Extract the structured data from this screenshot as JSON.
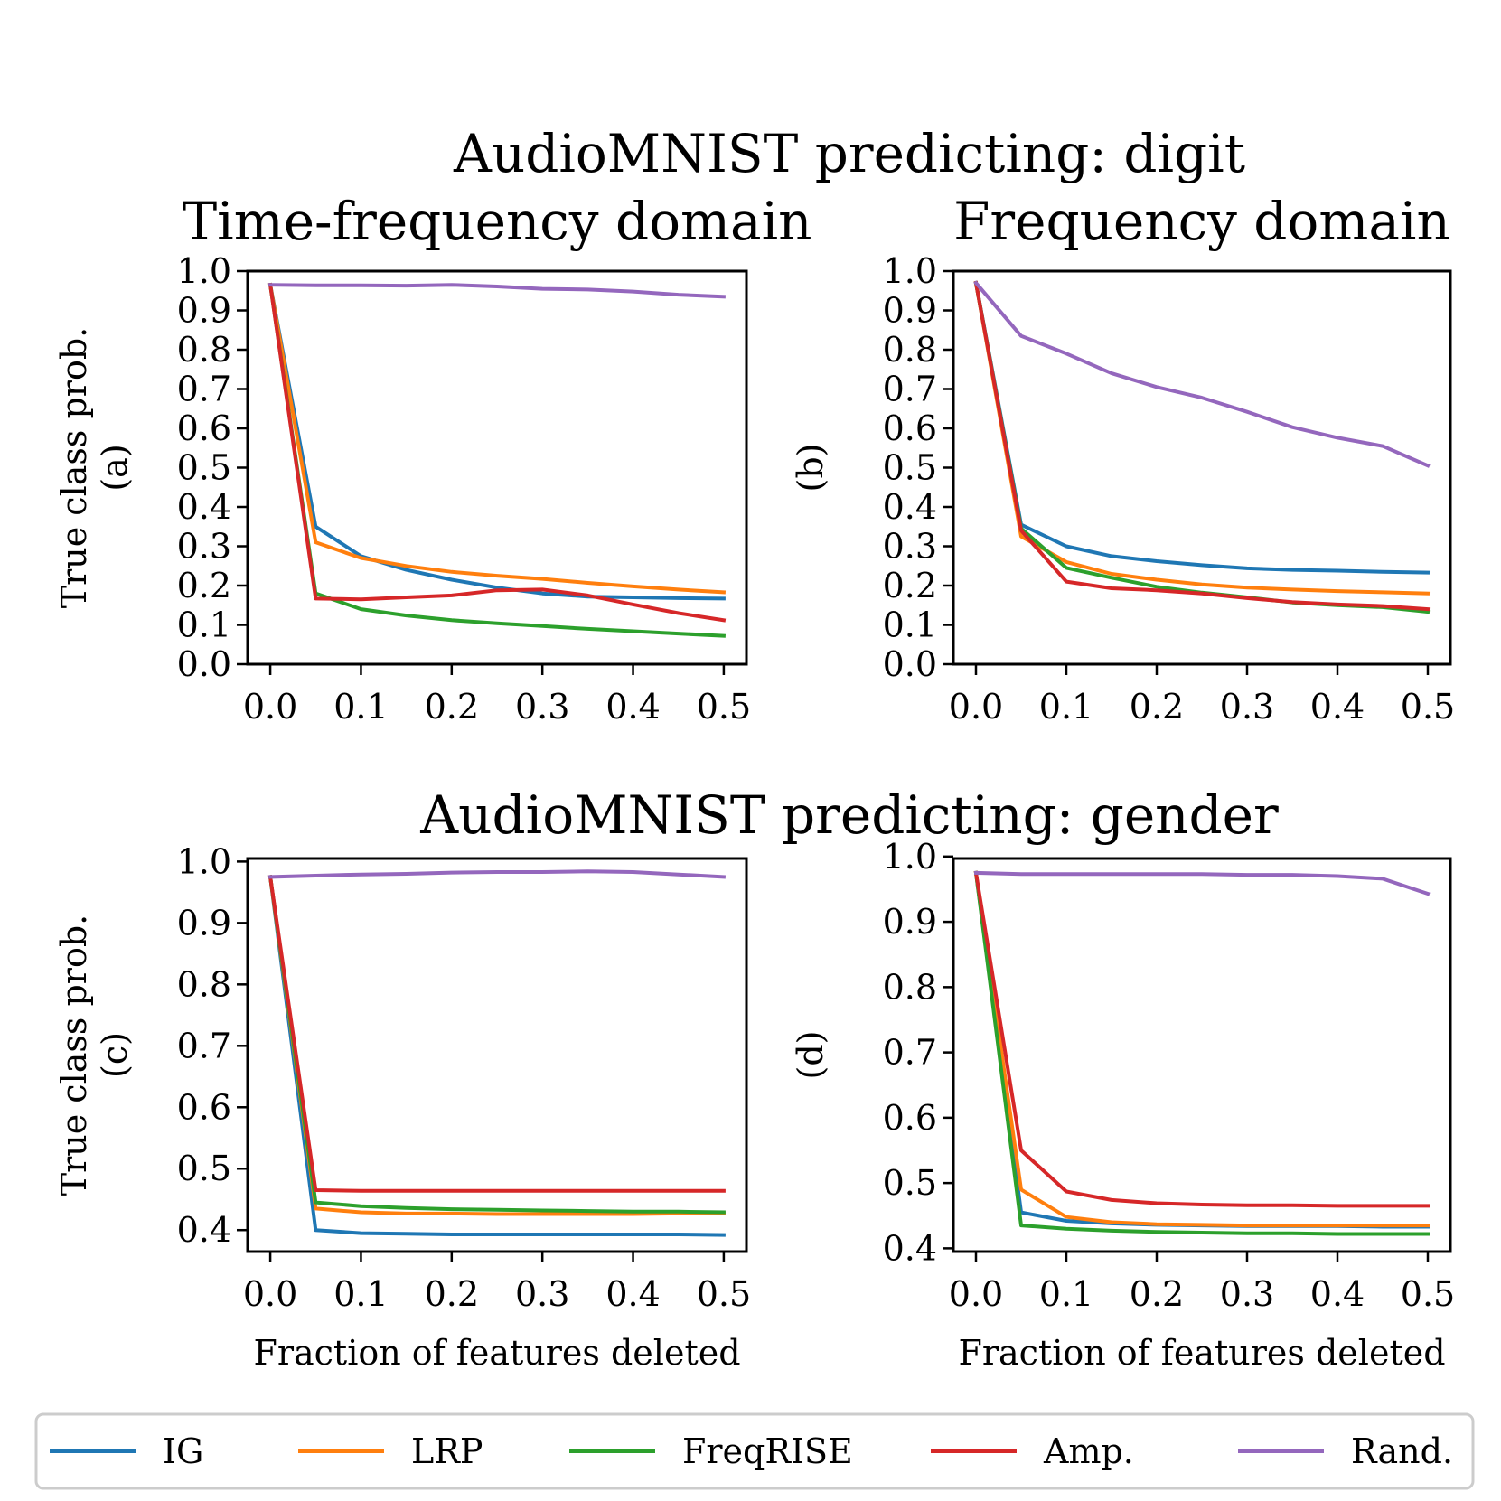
{
  "figure": {
    "row_titles": [
      "AudioMNIST predicting: digit",
      "AudioMNIST predicting: gender"
    ],
    "legend": {
      "location": "bottom",
      "entries": [
        {
          "name": "IG",
          "color": "#1f77b4"
        },
        {
          "name": "LRP",
          "color": "#ff7f0e"
        },
        {
          "name": "FreqRISE",
          "color": "#2ca02c"
        },
        {
          "name": "Amp.",
          "color": "#d62728"
        },
        {
          "name": "Rand.",
          "color": "#9467bd"
        }
      ]
    }
  },
  "chart_data": [
    {
      "id": "a",
      "type": "line",
      "title": "Time-frequency domain",
      "ylabel": [
        "True class prob.",
        "(a)"
      ],
      "xlabel": "",
      "xlim": [
        -0.025,
        0.525
      ],
      "ylim": [
        0.0,
        1.0
      ],
      "xticks": [
        "0.0",
        "0.1",
        "0.2",
        "0.3",
        "0.4",
        "0.5"
      ],
      "yticks": [
        "0.0",
        "0.1",
        "0.2",
        "0.3",
        "0.4",
        "0.5",
        "0.6",
        "0.7",
        "0.8",
        "0.9",
        "1.0"
      ],
      "grid": false,
      "x": [
        0.0,
        0.05,
        0.1,
        0.15,
        0.2,
        0.25,
        0.3,
        0.35,
        0.4,
        0.45,
        0.5
      ],
      "series": [
        {
          "name": "IG",
          "color": "#1f77b4",
          "values": [
            0.965,
            0.35,
            0.275,
            0.24,
            0.215,
            0.195,
            0.18,
            0.172,
            0.17,
            0.168,
            0.167
          ]
        },
        {
          "name": "LRP",
          "color": "#ff7f0e",
          "values": [
            0.965,
            0.31,
            0.27,
            0.25,
            0.235,
            0.225,
            0.217,
            0.207,
            0.198,
            0.19,
            0.183
          ]
        },
        {
          "name": "FreqRISE",
          "color": "#2ca02c",
          "values": [
            0.965,
            0.18,
            0.14,
            0.124,
            0.112,
            0.104,
            0.097,
            0.09,
            0.084,
            0.078,
            0.072
          ]
        },
        {
          "name": "Amp.",
          "color": "#d62728",
          "values": [
            0.965,
            0.167,
            0.165,
            0.17,
            0.175,
            0.188,
            0.19,
            0.175,
            0.152,
            0.13,
            0.112
          ]
        },
        {
          "name": "Rand.",
          "color": "#9467bd",
          "values": [
            0.965,
            0.964,
            0.964,
            0.963,
            0.965,
            0.961,
            0.955,
            0.953,
            0.948,
            0.94,
            0.935
          ]
        }
      ]
    },
    {
      "id": "b",
      "type": "line",
      "title": "Frequency domain",
      "ylabel": [
        "(b)"
      ],
      "xlabel": "",
      "xlim": [
        -0.025,
        0.525
      ],
      "ylim": [
        0.0,
        1.0
      ],
      "xticks": [
        "0.0",
        "0.1",
        "0.2",
        "0.3",
        "0.4",
        "0.5"
      ],
      "yticks": [
        "0.0",
        "0.1",
        "0.2",
        "0.3",
        "0.4",
        "0.5",
        "0.6",
        "0.7",
        "0.8",
        "0.9",
        "1.0"
      ],
      "grid": false,
      "x": [
        0.0,
        0.05,
        0.1,
        0.15,
        0.2,
        0.25,
        0.3,
        0.35,
        0.4,
        0.45,
        0.5
      ],
      "series": [
        {
          "name": "IG",
          "color": "#1f77b4",
          "values": [
            0.97,
            0.355,
            0.3,
            0.275,
            0.262,
            0.252,
            0.244,
            0.24,
            0.238,
            0.235,
            0.233
          ]
        },
        {
          "name": "LRP",
          "color": "#ff7f0e",
          "values": [
            0.97,
            0.325,
            0.26,
            0.23,
            0.215,
            0.203,
            0.195,
            0.19,
            0.186,
            0.183,
            0.18
          ]
        },
        {
          "name": "FreqRISE",
          "color": "#2ca02c",
          "values": [
            0.97,
            0.345,
            0.245,
            0.22,
            0.197,
            0.182,
            0.17,
            0.157,
            0.15,
            0.145,
            0.133
          ]
        },
        {
          "name": "Amp.",
          "color": "#d62728",
          "values": [
            0.97,
            0.34,
            0.21,
            0.193,
            0.188,
            0.18,
            0.168,
            0.158,
            0.152,
            0.148,
            0.14
          ]
        },
        {
          "name": "Rand.",
          "color": "#9467bd",
          "values": [
            0.97,
            0.835,
            0.79,
            0.74,
            0.705,
            0.678,
            0.642,
            0.603,
            0.576,
            0.555,
            0.505
          ]
        }
      ]
    },
    {
      "id": "c",
      "type": "line",
      "title": "",
      "ylabel": [
        "True class prob.",
        "(c)"
      ],
      "xlabel": "Fraction of features deleted",
      "xlim": [
        -0.025,
        0.525
      ],
      "ylim": [
        0.365,
        1.005
      ],
      "xticks": [
        "0.0",
        "0.1",
        "0.2",
        "0.3",
        "0.4",
        "0.5"
      ],
      "yticks": [
        "0.4",
        "0.5",
        "0.6",
        "0.7",
        "0.8",
        "0.9",
        "1.0"
      ],
      "grid": false,
      "x": [
        0.0,
        0.05,
        0.1,
        0.15,
        0.2,
        0.25,
        0.3,
        0.35,
        0.4,
        0.45,
        0.5
      ],
      "series": [
        {
          "name": "IG",
          "color": "#1f77b4",
          "values": [
            0.975,
            0.4,
            0.395,
            0.394,
            0.393,
            0.393,
            0.393,
            0.393,
            0.393,
            0.393,
            0.392
          ]
        },
        {
          "name": "LRP",
          "color": "#ff7f0e",
          "values": [
            0.975,
            0.435,
            0.429,
            0.427,
            0.427,
            0.426,
            0.426,
            0.426,
            0.426,
            0.427,
            0.427
          ]
        },
        {
          "name": "FreqRISE",
          "color": "#2ca02c",
          "values": [
            0.975,
            0.445,
            0.439,
            0.436,
            0.434,
            0.433,
            0.432,
            0.431,
            0.43,
            0.43,
            0.429
          ]
        },
        {
          "name": "Amp.",
          "color": "#d62728",
          "values": [
            0.975,
            0.465,
            0.464,
            0.464,
            0.464,
            0.464,
            0.464,
            0.464,
            0.464,
            0.464,
            0.464
          ]
        },
        {
          "name": "Rand.",
          "color": "#9467bd",
          "values": [
            0.975,
            0.977,
            0.979,
            0.98,
            0.982,
            0.983,
            0.983,
            0.984,
            0.983,
            0.979,
            0.975
          ]
        }
      ]
    },
    {
      "id": "d",
      "type": "line",
      "title": "",
      "ylabel": [
        "(d)"
      ],
      "xlabel": "Fraction of features deleted",
      "xlim": [
        -0.025,
        0.525
      ],
      "ylim": [
        0.395,
        0.997
      ],
      "xticks": [
        "0.0",
        "0.1",
        "0.2",
        "0.3",
        "0.4",
        "0.5"
      ],
      "yticks": [
        "0.4",
        "0.5",
        "0.6",
        "0.7",
        "0.8",
        "0.9",
        "1.0"
      ],
      "grid": false,
      "x": [
        0.0,
        0.05,
        0.1,
        0.15,
        0.2,
        0.25,
        0.3,
        0.35,
        0.4,
        0.45,
        0.5
      ],
      "series": [
        {
          "name": "IG",
          "color": "#1f77b4",
          "values": [
            0.975,
            0.455,
            0.442,
            0.438,
            0.436,
            0.435,
            0.434,
            0.434,
            0.434,
            0.433,
            0.433
          ]
        },
        {
          "name": "LRP",
          "color": "#ff7f0e",
          "values": [
            0.975,
            0.49,
            0.448,
            0.44,
            0.437,
            0.436,
            0.435,
            0.435,
            0.435,
            0.435,
            0.435
          ]
        },
        {
          "name": "FreqRISE",
          "color": "#2ca02c",
          "values": [
            0.975,
            0.435,
            0.43,
            0.427,
            0.425,
            0.424,
            0.423,
            0.423,
            0.422,
            0.422,
            0.422
          ]
        },
        {
          "name": "Amp.",
          "color": "#d62728",
          "values": [
            0.975,
            0.55,
            0.487,
            0.474,
            0.469,
            0.467,
            0.466,
            0.466,
            0.465,
            0.465,
            0.465
          ]
        },
        {
          "name": "Rand.",
          "color": "#9467bd",
          "values": [
            0.975,
            0.973,
            0.973,
            0.973,
            0.973,
            0.973,
            0.972,
            0.972,
            0.97,
            0.966,
            0.943
          ]
        }
      ]
    }
  ]
}
